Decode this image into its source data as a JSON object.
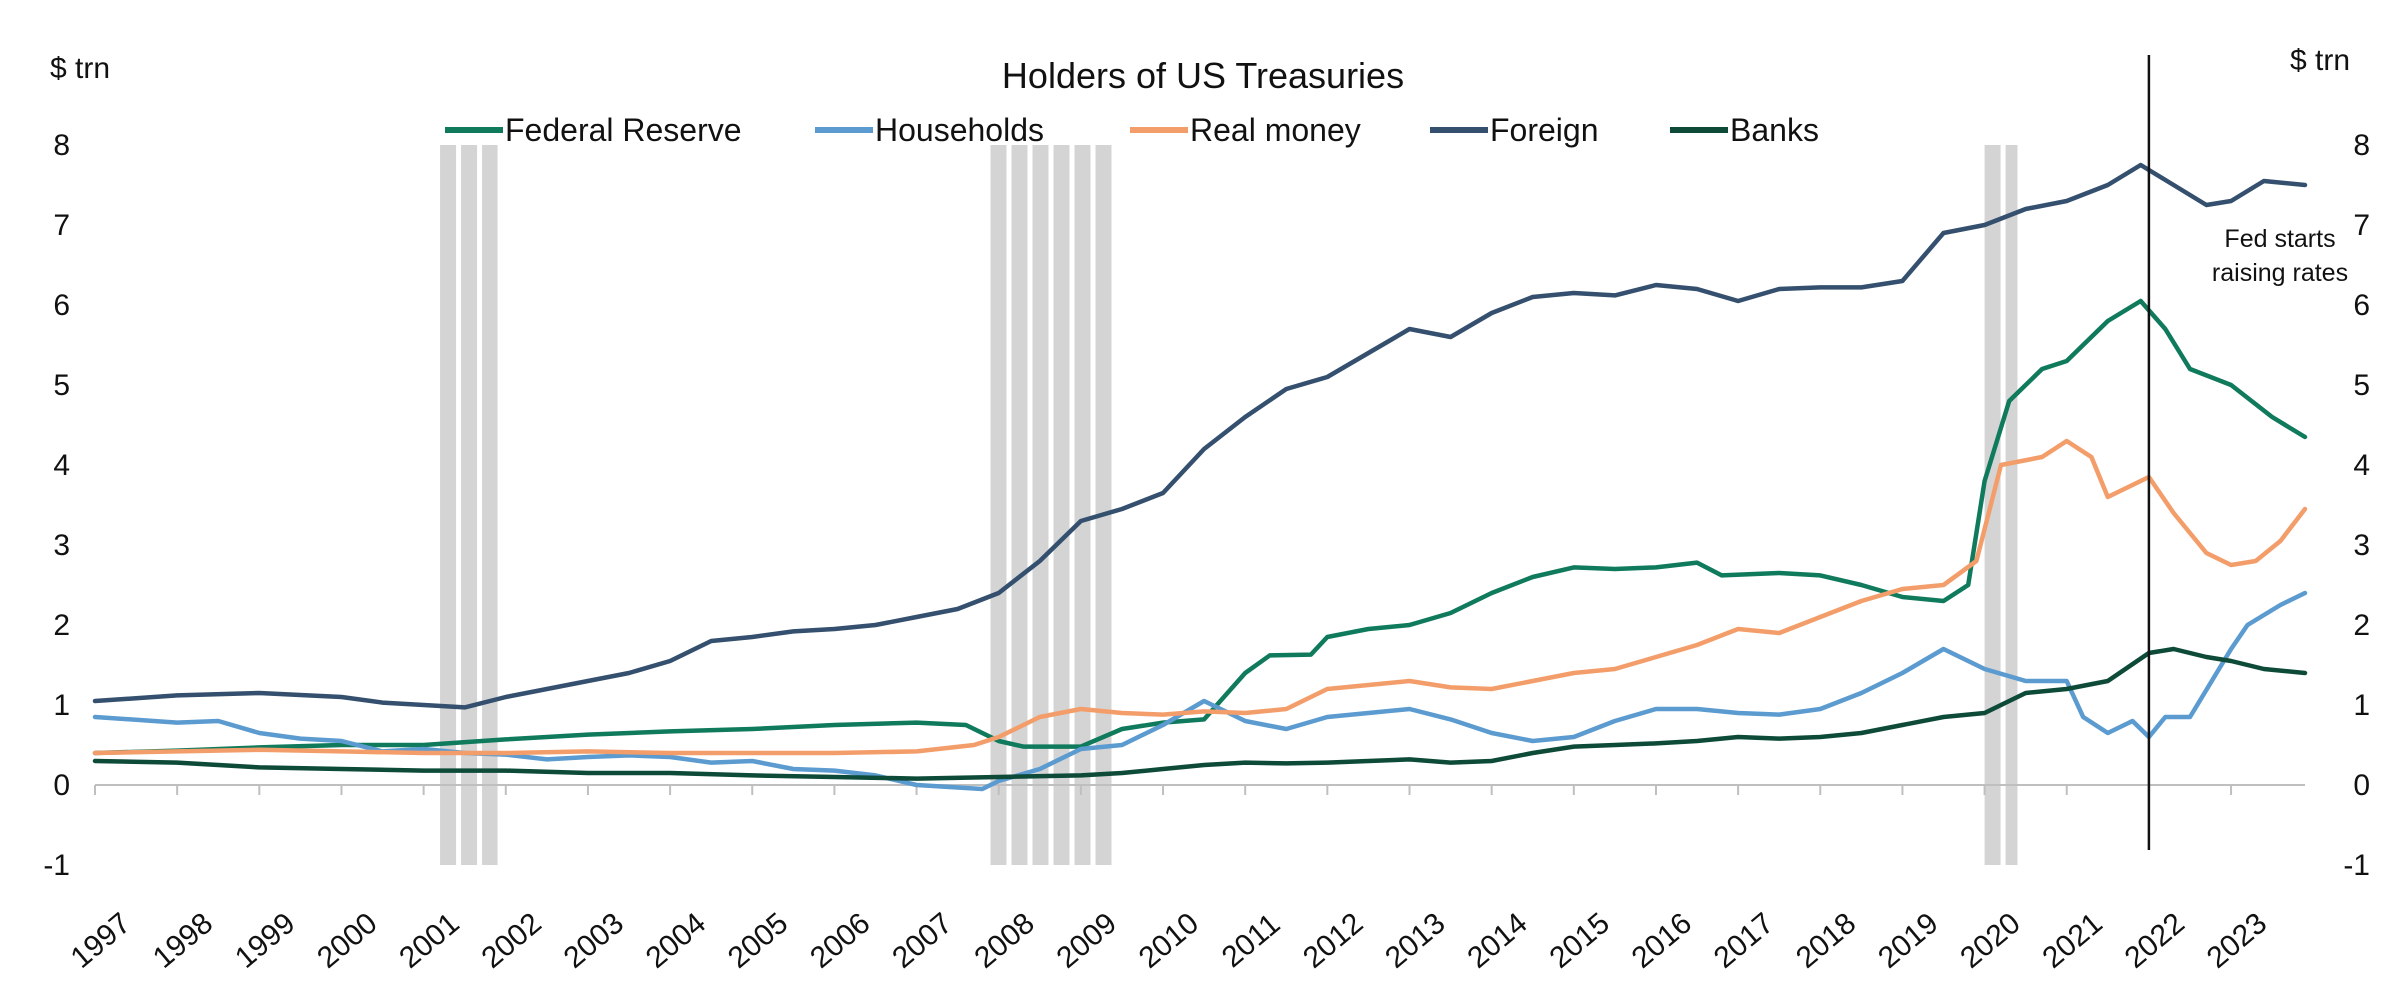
{
  "chart_data": {
    "type": "line",
    "title": "Holders of US Treasuries",
    "ylabel_left": "$ trn",
    "ylabel_right": "$ trn",
    "xlabel": "",
    "ylim": [
      -1,
      8
    ],
    "xlim": [
      1997,
      2023.9
    ],
    "y_ticks": [
      "-1",
      "0",
      "1",
      "2",
      "3",
      "4",
      "5",
      "6",
      "7",
      "8"
    ],
    "x_ticks": [
      "1997",
      "1998",
      "1999",
      "2000",
      "2001",
      "2002",
      "2003",
      "2004",
      "2005",
      "2006",
      "2007",
      "2008",
      "2009",
      "2010",
      "2011",
      "2012",
      "2013",
      "2014",
      "2015",
      "2016",
      "2017",
      "2018",
      "2019",
      "2020",
      "2021",
      "2022",
      "2023"
    ],
    "legend_position": "top-center",
    "grid": false,
    "recession_bands": [
      [
        2001.2,
        2001.9
      ],
      [
        2007.9,
        2009.4
      ],
      [
        2020.0,
        2020.4
      ]
    ],
    "annotations": [
      {
        "x": 2022.0,
        "label_lines": [
          "Fed starts",
          "raising rates"
        ]
      }
    ],
    "series": [
      {
        "name": "Federal Reserve",
        "color": "#0f7a5c",
        "points": [
          [
            1997,
            0.4
          ],
          [
            1998,
            0.43
          ],
          [
            1999,
            0.47
          ],
          [
            2000,
            0.5
          ],
          [
            2001,
            0.5
          ],
          [
            2002,
            0.57
          ],
          [
            2003,
            0.63
          ],
          [
            2004,
            0.67
          ],
          [
            2005,
            0.7
          ],
          [
            2006,
            0.75
          ],
          [
            2007,
            0.78
          ],
          [
            2007.6,
            0.75
          ],
          [
            2008,
            0.55
          ],
          [
            2008.3,
            0.48
          ],
          [
            2009,
            0.48
          ],
          [
            2009.5,
            0.7
          ],
          [
            2010,
            0.78
          ],
          [
            2010.5,
            0.82
          ],
          [
            2011,
            1.4
          ],
          [
            2011.3,
            1.62
          ],
          [
            2011.8,
            1.63
          ],
          [
            2012,
            1.85
          ],
          [
            2012.5,
            1.95
          ],
          [
            2013,
            2.0
          ],
          [
            2013.5,
            2.15
          ],
          [
            2014,
            2.4
          ],
          [
            2014.5,
            2.6
          ],
          [
            2015,
            2.72
          ],
          [
            2015.5,
            2.7
          ],
          [
            2016,
            2.72
          ],
          [
            2016.5,
            2.78
          ],
          [
            2016.8,
            2.62
          ],
          [
            2017.5,
            2.65
          ],
          [
            2018,
            2.62
          ],
          [
            2018.5,
            2.5
          ],
          [
            2019,
            2.35
          ],
          [
            2019.5,
            2.3
          ],
          [
            2019.8,
            2.5
          ],
          [
            2020.0,
            3.8
          ],
          [
            2020.3,
            4.8
          ],
          [
            2020.7,
            5.2
          ],
          [
            2021,
            5.3
          ],
          [
            2021.5,
            5.8
          ],
          [
            2021.9,
            6.05
          ],
          [
            2022.2,
            5.7
          ],
          [
            2022.5,
            5.2
          ],
          [
            2023,
            5.0
          ],
          [
            2023.5,
            4.6
          ],
          [
            2023.9,
            4.35
          ]
        ]
      },
      {
        "name": "Households",
        "color": "#5b9bd0",
        "points": [
          [
            1997,
            0.85
          ],
          [
            1998,
            0.78
          ],
          [
            1998.5,
            0.8
          ],
          [
            1999,
            0.65
          ],
          [
            1999.5,
            0.58
          ],
          [
            2000,
            0.55
          ],
          [
            2000.5,
            0.42
          ],
          [
            2001,
            0.45
          ],
          [
            2001.5,
            0.4
          ],
          [
            2002,
            0.38
          ],
          [
            2002.5,
            0.32
          ],
          [
            2003,
            0.35
          ],
          [
            2003.5,
            0.37
          ],
          [
            2004,
            0.35
          ],
          [
            2004.5,
            0.28
          ],
          [
            2005,
            0.3
          ],
          [
            2005.5,
            0.2
          ],
          [
            2006,
            0.18
          ],
          [
            2006.5,
            0.12
          ],
          [
            2007,
            0.0
          ],
          [
            2007.8,
            -0.05
          ],
          [
            2008,
            0.05
          ],
          [
            2008.5,
            0.2
          ],
          [
            2009,
            0.45
          ],
          [
            2009.5,
            0.5
          ],
          [
            2010,
            0.75
          ],
          [
            2010.5,
            1.05
          ],
          [
            2010.8,
            0.9
          ],
          [
            2011,
            0.8
          ],
          [
            2011.5,
            0.7
          ],
          [
            2012,
            0.85
          ],
          [
            2012.5,
            0.9
          ],
          [
            2013,
            0.95
          ],
          [
            2013.5,
            0.82
          ],
          [
            2014,
            0.65
          ],
          [
            2014.5,
            0.55
          ],
          [
            2015,
            0.6
          ],
          [
            2015.5,
            0.8
          ],
          [
            2016,
            0.95
          ],
          [
            2016.5,
            0.95
          ],
          [
            2017,
            0.9
          ],
          [
            2017.5,
            0.88
          ],
          [
            2018,
            0.95
          ],
          [
            2018.5,
            1.15
          ],
          [
            2019,
            1.4
          ],
          [
            2019.5,
            1.7
          ],
          [
            2020,
            1.45
          ],
          [
            2020.5,
            1.3
          ],
          [
            2021,
            1.3
          ],
          [
            2021.2,
            0.85
          ],
          [
            2021.5,
            0.65
          ],
          [
            2021.8,
            0.8
          ],
          [
            2022,
            0.6
          ],
          [
            2022.2,
            0.85
          ],
          [
            2022.5,
            0.85
          ],
          [
            2023,
            1.7
          ],
          [
            2023.2,
            2.0
          ],
          [
            2023.6,
            2.25
          ],
          [
            2023.9,
            2.4
          ]
        ]
      },
      {
        "name": "Real money",
        "color": "#f39e6a",
        "points": [
          [
            1997,
            0.4
          ],
          [
            1998,
            0.42
          ],
          [
            1999,
            0.44
          ],
          [
            2000,
            0.42
          ],
          [
            2001,
            0.4
          ],
          [
            2002,
            0.4
          ],
          [
            2003,
            0.42
          ],
          [
            2004,
            0.4
          ],
          [
            2005,
            0.4
          ],
          [
            2006,
            0.4
          ],
          [
            2007,
            0.42
          ],
          [
            2007.7,
            0.5
          ],
          [
            2008,
            0.6
          ],
          [
            2008.5,
            0.85
          ],
          [
            2009,
            0.95
          ],
          [
            2009.5,
            0.9
          ],
          [
            2010,
            0.88
          ],
          [
            2010.5,
            0.92
          ],
          [
            2011,
            0.9
          ],
          [
            2011.5,
            0.95
          ],
          [
            2012,
            1.2
          ],
          [
            2012.5,
            1.25
          ],
          [
            2013,
            1.3
          ],
          [
            2013.5,
            1.22
          ],
          [
            2014,
            1.2
          ],
          [
            2014.5,
            1.3
          ],
          [
            2015,
            1.4
          ],
          [
            2015.5,
            1.45
          ],
          [
            2016,
            1.6
          ],
          [
            2016.5,
            1.75
          ],
          [
            2017,
            1.95
          ],
          [
            2017.5,
            1.9
          ],
          [
            2018,
            2.1
          ],
          [
            2018.5,
            2.3
          ],
          [
            2019,
            2.45
          ],
          [
            2019.5,
            2.5
          ],
          [
            2019.9,
            2.8
          ],
          [
            2020.2,
            4.0
          ],
          [
            2020.7,
            4.1
          ],
          [
            2021,
            4.3
          ],
          [
            2021.3,
            4.1
          ],
          [
            2021.5,
            3.6
          ],
          [
            2022,
            3.85
          ],
          [
            2022.3,
            3.4
          ],
          [
            2022.7,
            2.9
          ],
          [
            2023,
            2.75
          ],
          [
            2023.3,
            2.8
          ],
          [
            2023.6,
            3.05
          ],
          [
            2023.9,
            3.45
          ]
        ]
      },
      {
        "name": "Foreign",
        "color": "#34506e",
        "points": [
          [
            1997,
            1.05
          ],
          [
            1998,
            1.12
          ],
          [
            1999,
            1.15
          ],
          [
            2000,
            1.1
          ],
          [
            2000.5,
            1.03
          ],
          [
            2001,
            1.0
          ],
          [
            2001.5,
            0.97
          ],
          [
            2002,
            1.1
          ],
          [
            2002.5,
            1.2
          ],
          [
            2003,
            1.3
          ],
          [
            2003.5,
            1.4
          ],
          [
            2004,
            1.55
          ],
          [
            2004.5,
            1.8
          ],
          [
            2005,
            1.85
          ],
          [
            2005.5,
            1.92
          ],
          [
            2006,
            1.95
          ],
          [
            2006.5,
            2.0
          ],
          [
            2007,
            2.1
          ],
          [
            2007.5,
            2.2
          ],
          [
            2008,
            2.4
          ],
          [
            2008.5,
            2.8
          ],
          [
            2009,
            3.3
          ],
          [
            2009.5,
            3.45
          ],
          [
            2010,
            3.65
          ],
          [
            2010.5,
            4.2
          ],
          [
            2011,
            4.6
          ],
          [
            2011.5,
            4.95
          ],
          [
            2012,
            5.1
          ],
          [
            2012.5,
            5.4
          ],
          [
            2013,
            5.7
          ],
          [
            2013.5,
            5.6
          ],
          [
            2014,
            5.9
          ],
          [
            2014.5,
            6.1
          ],
          [
            2015,
            6.15
          ],
          [
            2015.5,
            6.12
          ],
          [
            2016,
            6.25
          ],
          [
            2016.5,
            6.2
          ],
          [
            2017,
            6.05
          ],
          [
            2017.5,
            6.2
          ],
          [
            2018,
            6.22
          ],
          [
            2018.5,
            6.22
          ],
          [
            2019,
            6.3
          ],
          [
            2019.5,
            6.9
          ],
          [
            2020,
            7.0
          ],
          [
            2020.5,
            7.2
          ],
          [
            2021,
            7.3
          ],
          [
            2021.5,
            7.5
          ],
          [
            2021.9,
            7.75
          ],
          [
            2022.3,
            7.5
          ],
          [
            2022.7,
            7.25
          ],
          [
            2023,
            7.3
          ],
          [
            2023.4,
            7.55
          ],
          [
            2023.9,
            7.5
          ]
        ]
      },
      {
        "name": "Banks",
        "color": "#0d4a37",
        "points": [
          [
            1997,
            0.3
          ],
          [
            1998,
            0.28
          ],
          [
            1999,
            0.22
          ],
          [
            2000,
            0.2
          ],
          [
            2001,
            0.18
          ],
          [
            2002,
            0.18
          ],
          [
            2003,
            0.15
          ],
          [
            2004,
            0.15
          ],
          [
            2005,
            0.12
          ],
          [
            2006,
            0.1
          ],
          [
            2007,
            0.08
          ],
          [
            2008,
            0.1
          ],
          [
            2009,
            0.12
          ],
          [
            2009.5,
            0.15
          ],
          [
            2010,
            0.2
          ],
          [
            2010.5,
            0.25
          ],
          [
            2011,
            0.28
          ],
          [
            2011.5,
            0.27
          ],
          [
            2012,
            0.28
          ],
          [
            2012.5,
            0.3
          ],
          [
            2013,
            0.32
          ],
          [
            2013.5,
            0.28
          ],
          [
            2014,
            0.3
          ],
          [
            2014.5,
            0.4
          ],
          [
            2015,
            0.48
          ],
          [
            2015.5,
            0.5
          ],
          [
            2016,
            0.52
          ],
          [
            2016.5,
            0.55
          ],
          [
            2017,
            0.6
          ],
          [
            2017.5,
            0.58
          ],
          [
            2018,
            0.6
          ],
          [
            2018.5,
            0.65
          ],
          [
            2019,
            0.75
          ],
          [
            2019.5,
            0.85
          ],
          [
            2020,
            0.9
          ],
          [
            2020.3,
            1.05
          ],
          [
            2020.5,
            1.15
          ],
          [
            2021,
            1.2
          ],
          [
            2021.5,
            1.3
          ],
          [
            2022,
            1.65
          ],
          [
            2022.3,
            1.7
          ],
          [
            2022.7,
            1.6
          ],
          [
            2023,
            1.55
          ],
          [
            2023.4,
            1.45
          ],
          [
            2023.9,
            1.4
          ]
        ]
      }
    ]
  }
}
